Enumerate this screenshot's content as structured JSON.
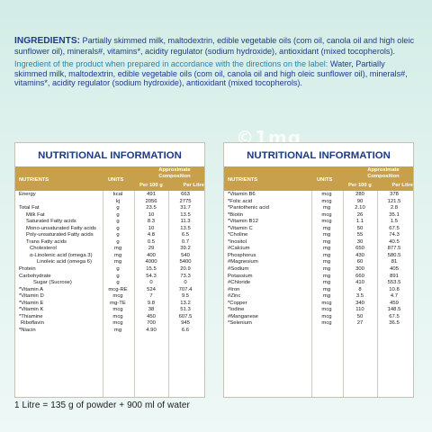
{
  "ingredients": {
    "heading": "INGREDIENTS:",
    "text": " Partially skimmed milk, maltodextrin, edible vegetable oils (com oil, canola oil and high oleic sunflower oil), minerals#, vitamins*, acidity regulator (sodium hydroxide), antioxidant (mixed tocopherols).",
    "prepared_intro": "Ingredient of the product when prepared in accordance with the directions on the label:",
    "prepared_text": " Water, Partially skimmed milk, maltodextrin, edible vegetable oils (com oil, canola oil and high oleic sunflower oil), minerals#, vitamins*, acidity regulator (sodium hydroxide), antioxidant (mixed tocopherols)."
  },
  "watermark": "©1mg",
  "table_header": {
    "title": "NUTRITIONAL INFORMATION",
    "nutrients": "NUTRIENTS",
    "units": "UNITS",
    "approx": "Approximate Composition",
    "per100": "Per 100 g",
    "perLitre": "Per Litre"
  },
  "left_rows": [
    {
      "name": "Energy",
      "unit": "kcal",
      "v1": "491",
      "v2": "663",
      "indent": 0
    },
    {
      "name": "",
      "unit": "kj",
      "v1": "2056",
      "v2": "2775",
      "indent": 0
    },
    {
      "name": "Total Fat",
      "unit": "g",
      "v1": "23.5",
      "v2": "31.7",
      "indent": 0
    },
    {
      "name": "Milk Fat",
      "unit": "g",
      "v1": "10",
      "v2": "13.5",
      "indent": 8
    },
    {
      "name": "Saturated Fatty acids",
      "unit": "g",
      "v1": "8.3",
      "v2": "11.3",
      "indent": 8
    },
    {
      "name": "Mono-unsaturated Fatty acids",
      "unit": "g",
      "v1": "10",
      "v2": "13.5",
      "indent": 8
    },
    {
      "name": "Poly-unsaturated Fatty acids",
      "unit": "g",
      "v1": "4.8",
      "v2": "6.5",
      "indent": 8
    },
    {
      "name": "Trans Fatty acids",
      "unit": "g",
      "v1": "0.5",
      "v2": "0.7",
      "indent": 8
    },
    {
      "name": "Cholesterol",
      "unit": "mg",
      "v1": "29",
      "v2": "39.2",
      "indent": 12
    },
    {
      "name": "α-Linolenic acid (omega 3)",
      "unit": "mg",
      "v1": "400",
      "v2": "540",
      "indent": 12
    },
    {
      "name": "Linoleic acid (omega 6)",
      "unit": "mg",
      "v1": "4000",
      "v2": "5400",
      "indent": 20
    },
    {
      "name": "Protein",
      "unit": "g",
      "v1": "15.5",
      "v2": "20.9",
      "indent": 0
    },
    {
      "name": "Carbohydrate",
      "unit": "g",
      "v1": "54.3",
      "v2": "73.3",
      "indent": 0
    },
    {
      "name": "Sugar (Sucrose)",
      "unit": "g",
      "v1": "0",
      "v2": "0",
      "indent": 16
    },
    {
      "name": "*Vitamin A",
      "unit": "mcg-RE",
      "v1": "524",
      "v2": "707.4",
      "indent": 0
    },
    {
      "name": "*Vitamin D",
      "unit": "mcg",
      "v1": "7",
      "v2": "9.5",
      "indent": 0
    },
    {
      "name": "*Vitamin E",
      "unit": "mg-TE",
      "v1": "9.8",
      "v2": "13.2",
      "indent": 0
    },
    {
      "name": "*Vitamin K",
      "unit": "mcg",
      "v1": "38",
      "v2": "51.3",
      "indent": 0
    },
    {
      "name": "*Thiamine",
      "unit": "mcg",
      "v1": "450",
      "v2": "607.5",
      "indent": 0
    },
    {
      "name": "Riboflavin",
      "unit": "mcg",
      "v1": "700",
      "v2": "945",
      "indent": 2
    },
    {
      "name": "*Niacin",
      "unit": "mg",
      "v1": "4.90",
      "v2": "6.6",
      "indent": 0
    }
  ],
  "right_rows": [
    {
      "name": "*Vitamin B6",
      "unit": "mcg",
      "v1": "280",
      "v2": "378",
      "indent": 0
    },
    {
      "name": "*Folic acid",
      "unit": "mcg",
      "v1": "90",
      "v2": "121.5",
      "indent": 0
    },
    {
      "name": "*Pantothenic acid",
      "unit": "mg",
      "v1": "2.10",
      "v2": "2.8",
      "indent": 0
    },
    {
      "name": "*Biotin",
      "unit": "mcg",
      "v1": "26",
      "v2": "35.1",
      "indent": 0
    },
    {
      "name": "*Vitamin B12",
      "unit": "mcg",
      "v1": "1.1",
      "v2": "1.5",
      "indent": 0
    },
    {
      "name": "*Vitamin C",
      "unit": "mg",
      "v1": "50",
      "v2": "67.5",
      "indent": 0
    },
    {
      "name": "*Choline",
      "unit": "mg",
      "v1": "55",
      "v2": "74.3",
      "indent": 0
    },
    {
      "name": "*Inositol",
      "unit": "mg",
      "v1": "30",
      "v2": "40.5",
      "indent": 0
    },
    {
      "name": "#Calcium",
      "unit": "mg",
      "v1": "650",
      "v2": "877.5",
      "indent": 0
    },
    {
      "name": "Phosphorus",
      "unit": "mg",
      "v1": "430",
      "v2": "580.5",
      "indent": 0
    },
    {
      "name": "#Magnesium",
      "unit": "mg",
      "v1": "60",
      "v2": "81",
      "indent": 0
    },
    {
      "name": "#Sodium",
      "unit": "mg",
      "v1": "300",
      "v2": "405",
      "indent": 0
    },
    {
      "name": "Potassium",
      "unit": "mg",
      "v1": "660",
      "v2": "891",
      "indent": 0
    },
    {
      "name": "#Chloride",
      "unit": "mg",
      "v1": "410",
      "v2": "553.5",
      "indent": 0
    },
    {
      "name": "#Iron",
      "unit": "mg",
      "v1": "8",
      "v2": "10.8",
      "indent": 0
    },
    {
      "name": "#Zinc",
      "unit": "mg",
      "v1": "3.5",
      "v2": "4.7",
      "indent": 0
    },
    {
      "name": "*Copper",
      "unit": "mcg",
      "v1": "340",
      "v2": "459",
      "indent": 0
    },
    {
      "name": "*Iodine",
      "unit": "mcg",
      "v1": "110",
      "v2": "148.5",
      "indent": 0
    },
    {
      "name": "#Manganese",
      "unit": "mcg",
      "v1": "50",
      "v2": "67.5",
      "indent": 0
    },
    {
      "name": "*Selenium",
      "unit": "mcg",
      "v1": "27",
      "v2": "36.5",
      "indent": 0
    }
  ],
  "note": "1 Litre = 135 g of  powder + 900 ml of water"
}
